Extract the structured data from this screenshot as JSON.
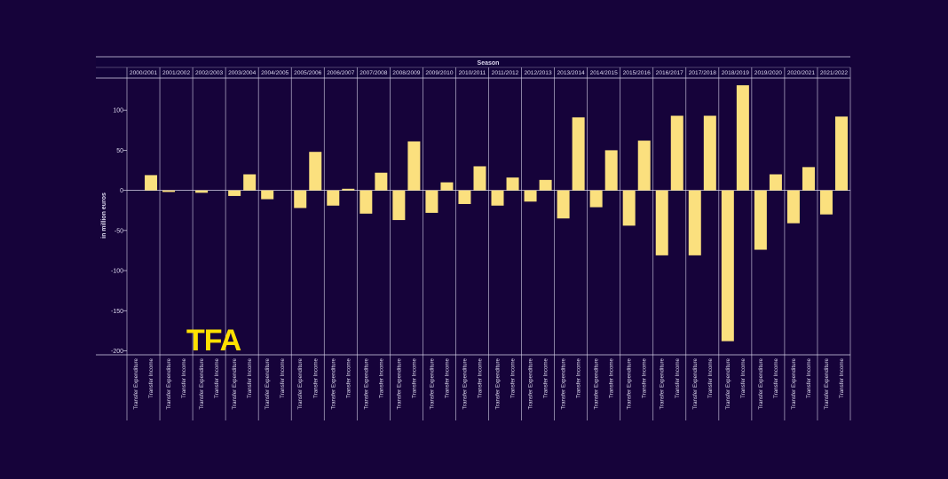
{
  "chart_data": {
    "type": "bar",
    "header": "Season",
    "ylabel": "in million euros",
    "ylim": [
      -205,
      140
    ],
    "yticks": [
      100,
      50,
      0,
      -50,
      -100,
      -150,
      -200
    ],
    "sub_categories": [
      "Transfer Expenditure",
      "Transfer Income"
    ],
    "seasons": [
      {
        "season": "2000/2001",
        "values": [
          0,
          19
        ]
      },
      {
        "season": "2001/2002",
        "values": [
          -2,
          0
        ]
      },
      {
        "season": "2002/2003",
        "values": [
          -3,
          0
        ]
      },
      {
        "season": "2003/2004",
        "values": [
          -7,
          20
        ]
      },
      {
        "season": "2004/2005",
        "values": [
          -11,
          0
        ]
      },
      {
        "season": "2005/2006",
        "values": [
          -22,
          48
        ]
      },
      {
        "season": "2006/2007",
        "values": [
          -19,
          2
        ]
      },
      {
        "season": "2007/2008",
        "values": [
          -29,
          22
        ]
      },
      {
        "season": "2008/2009",
        "values": [
          -37,
          61
        ]
      },
      {
        "season": "2009/2010",
        "values": [
          -28,
          10
        ]
      },
      {
        "season": "2010/2011",
        "values": [
          -17,
          30
        ]
      },
      {
        "season": "2011/2012",
        "values": [
          -19,
          16
        ]
      },
      {
        "season": "2012/2013",
        "values": [
          -14,
          13
        ]
      },
      {
        "season": "2013/2014",
        "values": [
          -35,
          91
        ]
      },
      {
        "season": "2014/2015",
        "values": [
          -21,
          50
        ]
      },
      {
        "season": "2015/2016",
        "values": [
          -44,
          62
        ]
      },
      {
        "season": "2016/2017",
        "values": [
          -81,
          93
        ]
      },
      {
        "season": "2017/2018",
        "values": [
          -81,
          93
        ]
      },
      {
        "season": "2018/2019",
        "values": [
          -188,
          131
        ]
      },
      {
        "season": "2019/2020",
        "values": [
          -74,
          20
        ]
      },
      {
        "season": "2020/2021",
        "values": [
          -41,
          29
        ]
      },
      {
        "season": "2021/2022",
        "values": [
          -30,
          92
        ]
      }
    ],
    "colors": {
      "bar": "#fbe07e",
      "background": "#16033a",
      "line": "#d8d4ea",
      "text": "#dcd8ee",
      "logo": "#ffe100"
    }
  },
  "logo": {
    "text": "TFA"
  }
}
